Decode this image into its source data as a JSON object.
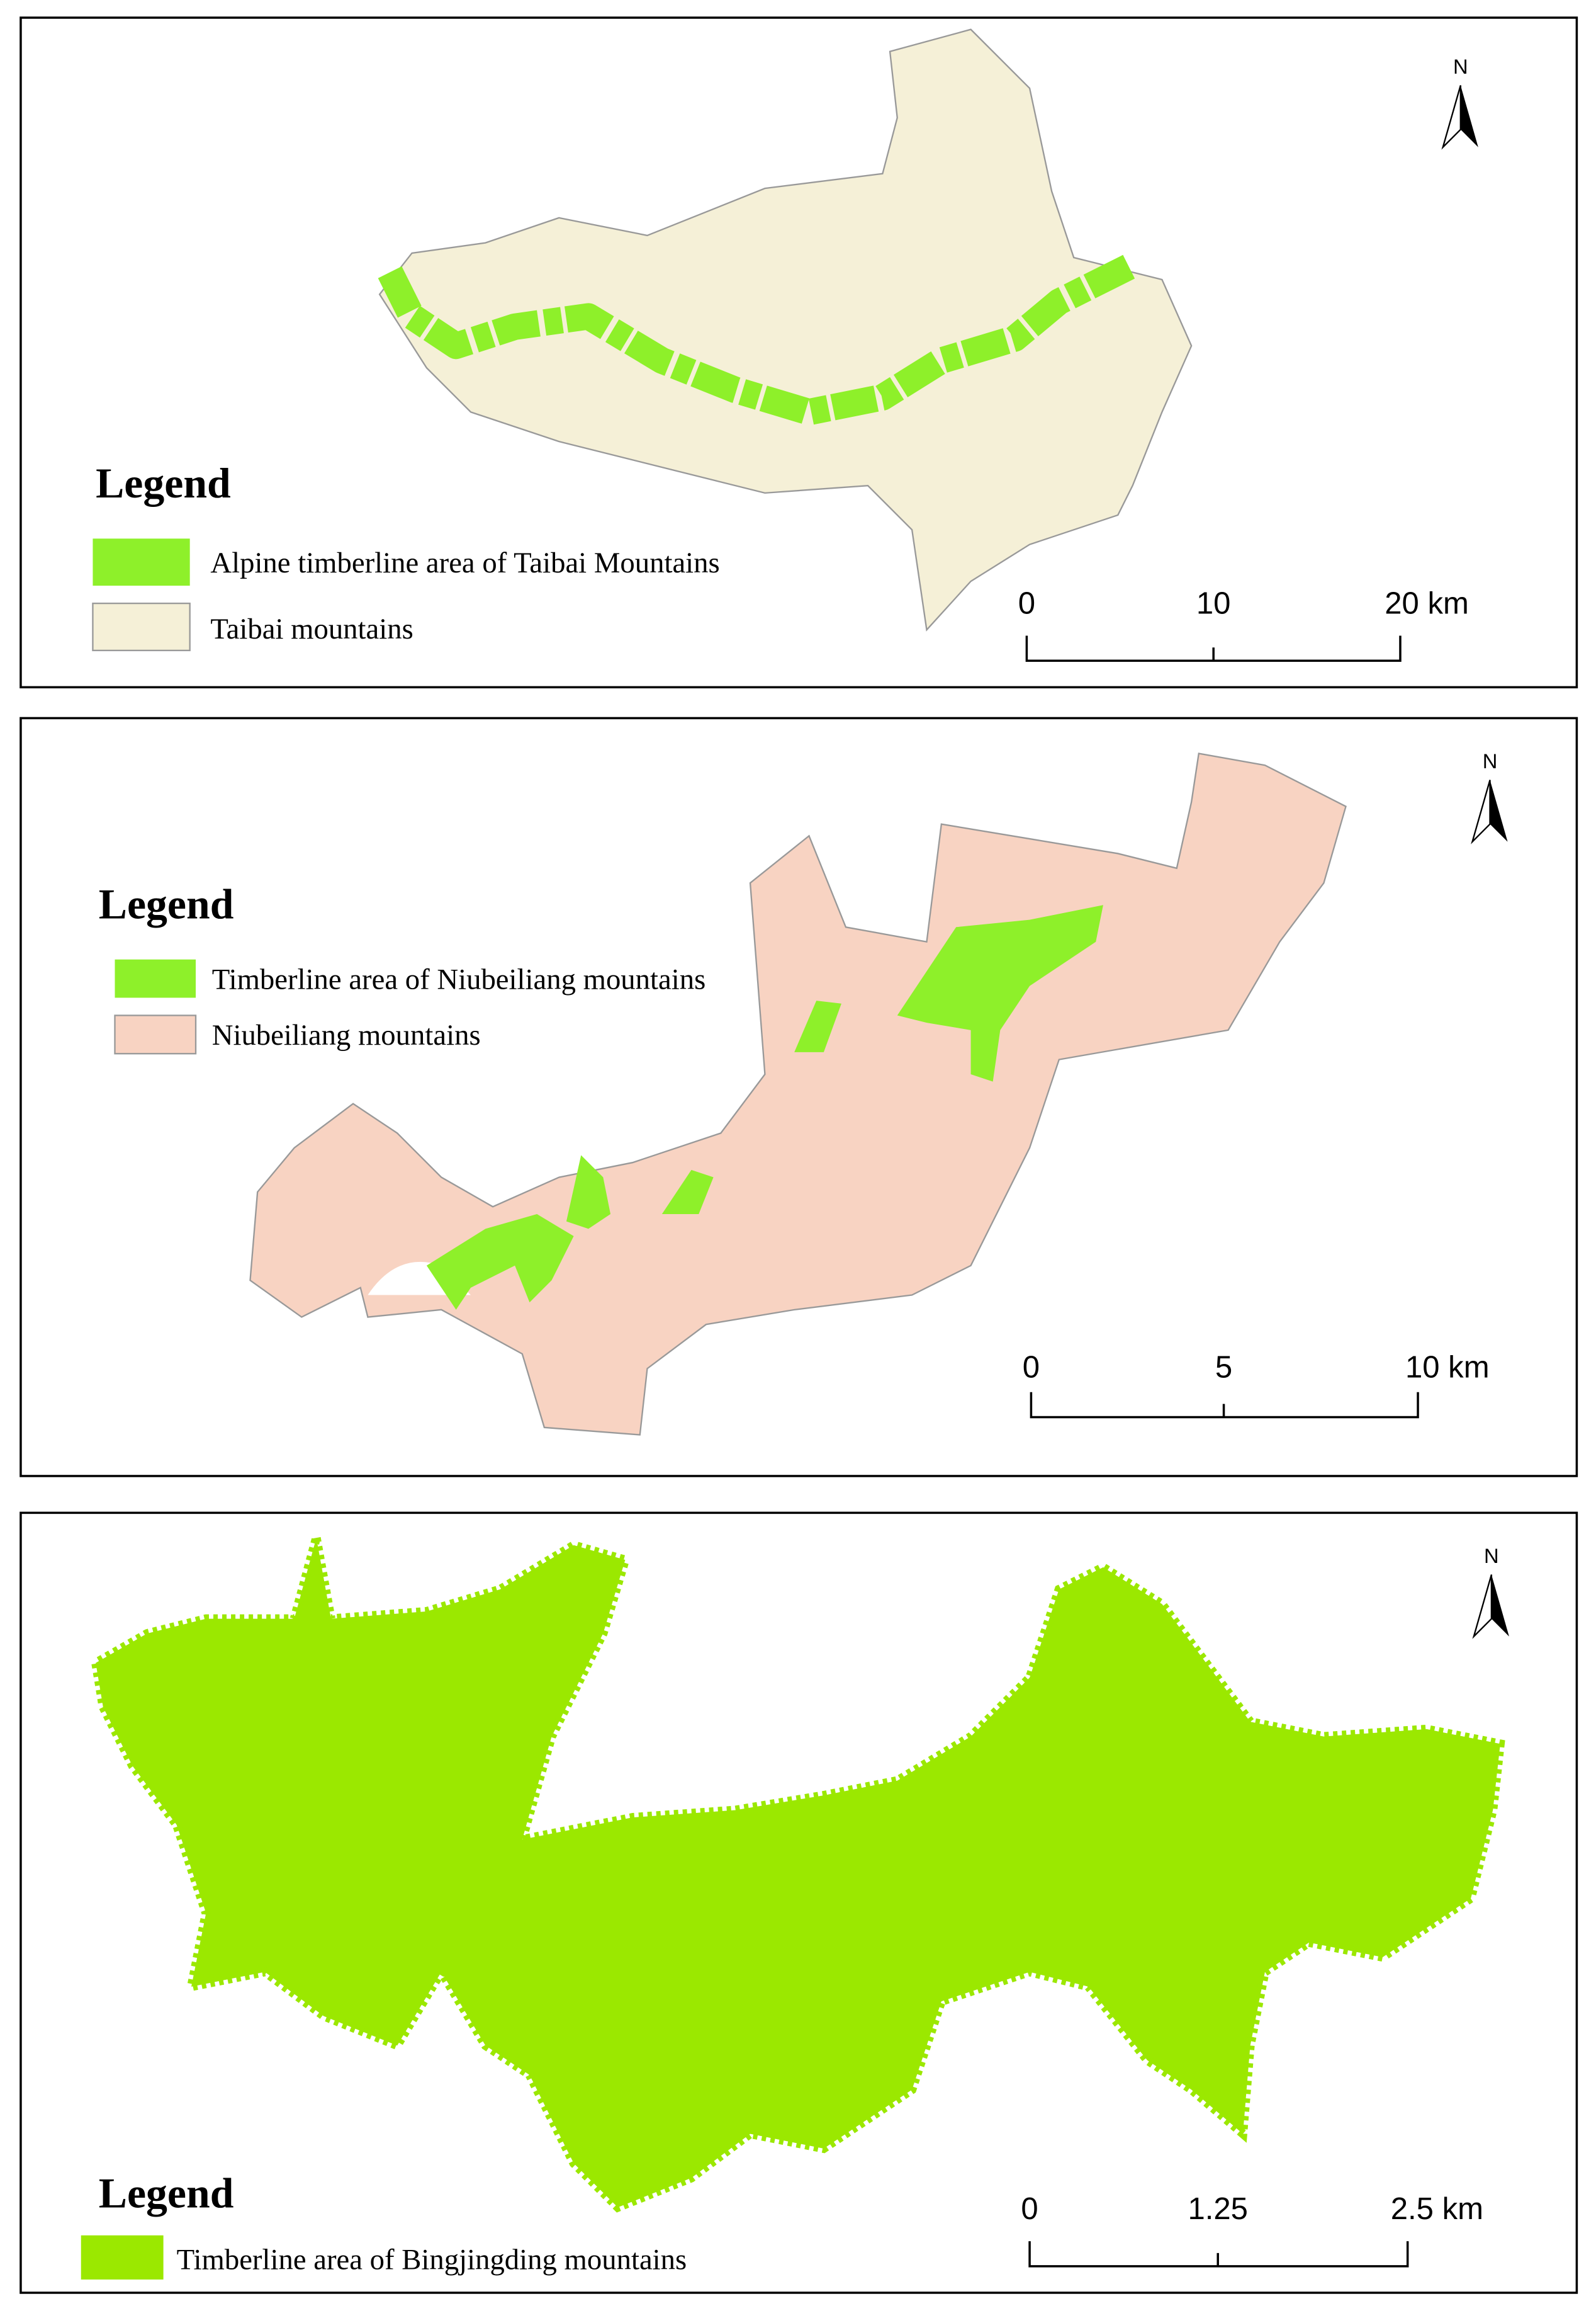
{
  "panels": [
    {
      "north": "N",
      "legend": {
        "title": "Legend",
        "items": [
          "Alpine timberline area of Taibai Mountains",
          "Taibai mountains"
        ]
      },
      "scale_bar": [
        "0",
        "10",
        "20 km"
      ]
    },
    {
      "north": "N",
      "legend": {
        "title": "Legend",
        "items": [
          "Timberline area of Niubeiliang mountains",
          "Niubeiliang mountains"
        ]
      },
      "scale_bar": [
        "0",
        "5",
        "10 km"
      ]
    },
    {
      "north": "N",
      "legend": {
        "title": "Legend",
        "items": [
          "Timberline area of Bingjingding mountains"
        ]
      },
      "scale_bar": [
        "0",
        "1.25",
        "2.5 km"
      ]
    }
  ]
}
